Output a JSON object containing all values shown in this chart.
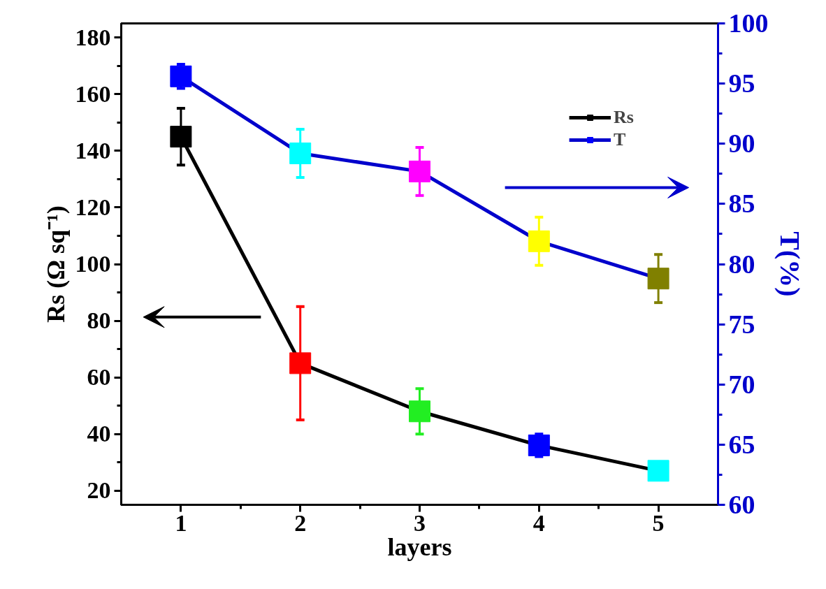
{
  "chart_data": {
    "type": "line",
    "xlabel": "layers",
    "ylabel": "Rs (Ω sq⁻¹)",
    "y2label": "T(%)",
    "x": [
      1,
      2,
      3,
      4,
      5
    ],
    "xlim": [
      0.5,
      5.5
    ],
    "xticks": [
      1,
      2,
      3,
      4,
      5
    ],
    "ylim": [
      15,
      185
    ],
    "yticks": [
      20,
      40,
      60,
      80,
      100,
      120,
      140,
      160,
      180
    ],
    "y2lim": [
      60,
      100
    ],
    "y2ticks": [
      60,
      65,
      70,
      75,
      80,
      85,
      90,
      95,
      100
    ],
    "series": [
      {
        "name": "Rs",
        "color": "#000000",
        "colors": [
          "#000000",
          "#ff0000",
          "#22ee22",
          "#0000ff",
          "#00ffff"
        ],
        "values": [
          145,
          65,
          48,
          36,
          27
        ],
        "errors": [
          10,
          20,
          8,
          4,
          2
        ]
      },
      {
        "name": "T",
        "color": "#0000cc",
        "axis": "y2",
        "colors": [
          "#0000ff",
          "#00ffff",
          "#ff00ff",
          "#ffff00",
          "#808000"
        ],
        "values": [
          95.6,
          89.2,
          87.7,
          81.9,
          78.8
        ],
        "errors": [
          1,
          2,
          2,
          2,
          2
        ]
      }
    ],
    "marker": "square",
    "line_style": "solid",
    "grid": false,
    "legend": "top right"
  }
}
